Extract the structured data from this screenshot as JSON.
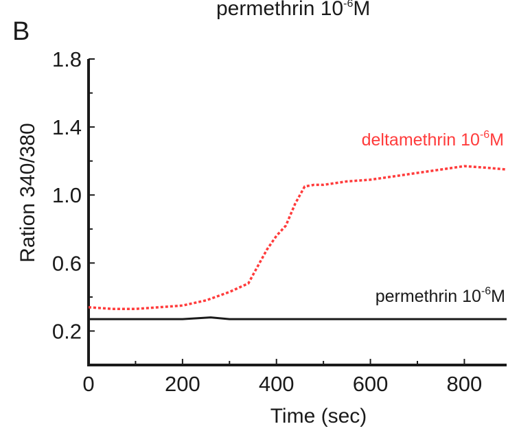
{
  "chart_data": {
    "type": "line",
    "panel_label": "B",
    "top_caption": {
      "text": "permethrin  10",
      "sup": "-6",
      "suffix": "M"
    },
    "xlabel": "Time (sec)",
    "ylabel": "Ration 340/380",
    "xlim": [
      0,
      890
    ],
    "ylim": [
      0,
      1.8
    ],
    "xticks": [
      0,
      200,
      400,
      600,
      800
    ],
    "yticks": [
      0.2,
      0.6,
      1.0,
      1.4,
      1.8
    ],
    "ytick_labels": [
      "0.2",
      "0.6",
      "1.0",
      "1.4",
      "1.8"
    ],
    "grid": false,
    "series": [
      {
        "name": "deltamethrin 10",
        "name_sup": "-6",
        "name_suffix": "M",
        "color": "#ff3b3b",
        "style": "dotted",
        "x": [
          0,
          50,
          100,
          150,
          200,
          250,
          300,
          340,
          360,
          380,
          400,
          420,
          440,
          460,
          480,
          500,
          550,
          600,
          650,
          700,
          750,
          800,
          850,
          890
        ],
        "y": [
          0.34,
          0.33,
          0.33,
          0.34,
          0.35,
          0.38,
          0.43,
          0.48,
          0.58,
          0.68,
          0.76,
          0.82,
          0.95,
          1.05,
          1.06,
          1.06,
          1.08,
          1.09,
          1.11,
          1.13,
          1.15,
          1.17,
          1.16,
          1.15
        ]
      },
      {
        "name": "permethrin 10",
        "name_sup": "-6",
        "name_suffix": "M",
        "color": "#1a1a1a",
        "style": "solid",
        "x": [
          0,
          100,
          200,
          260,
          300,
          400,
          500,
          600,
          700,
          800,
          890
        ],
        "y": [
          0.27,
          0.27,
          0.27,
          0.28,
          0.27,
          0.27,
          0.27,
          0.27,
          0.27,
          0.27,
          0.27
        ]
      }
    ]
  }
}
